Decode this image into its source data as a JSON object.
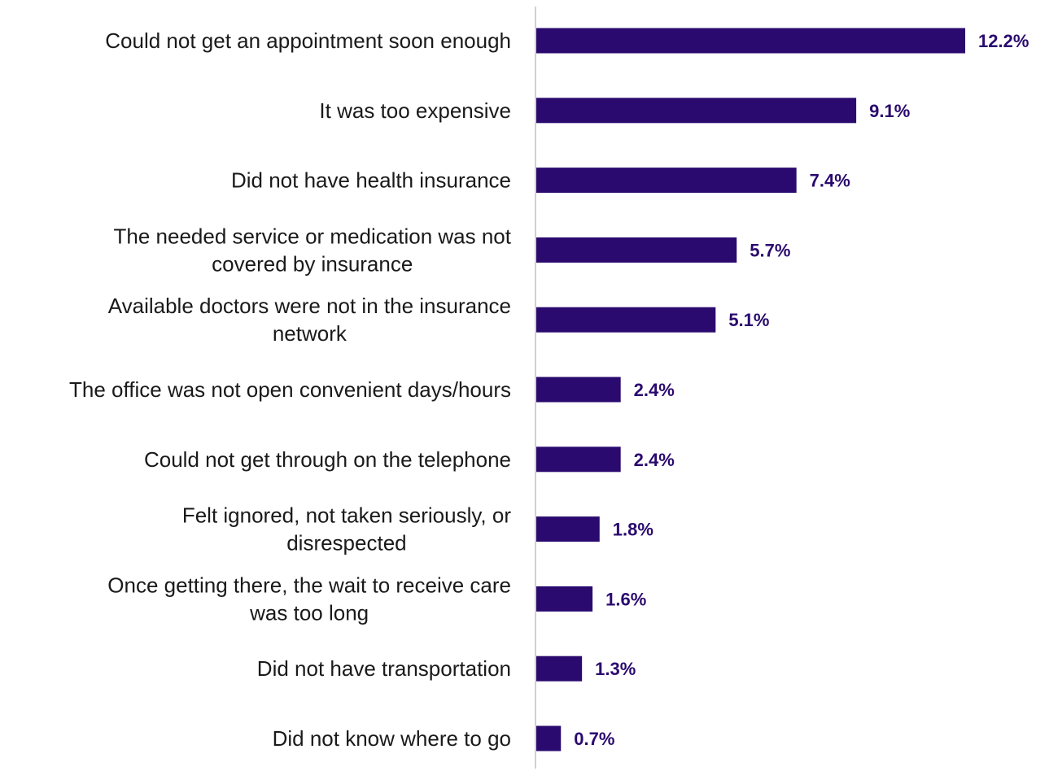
{
  "chart_data": {
    "type": "bar",
    "orientation": "horizontal",
    "categories": [
      "Could not get an appointment soon enough",
      "It was too expensive",
      "Did not have health insurance",
      "The needed service or medication was not covered by insurance",
      "Available doctors were not in the insurance network",
      "The office was not open convenient days/hours",
      "Could not get through on the telephone",
      "Felt ignored, not taken seriously, or disrespected",
      "Once getting there, the wait to receive care was too long",
      "Did not have transportation",
      "Did not know where to go"
    ],
    "category_lines": [
      [
        "Could not get an appointment soon enough"
      ],
      [
        "It was too expensive"
      ],
      [
        "Did not have health insurance"
      ],
      [
        "The needed service or medication was not",
        "covered by insurance"
      ],
      [
        "Available doctors were not in the insurance",
        "network"
      ],
      [
        "The office was not open convenient days/hours"
      ],
      [
        "Could not get through on the telephone"
      ],
      [
        "Felt ignored, not taken seriously, or",
        "disrespected"
      ],
      [
        "Once getting there, the wait to receive care",
        "was too long"
      ],
      [
        "Did not have transportation"
      ],
      [
        "Did not know where to go"
      ]
    ],
    "values": [
      12.2,
      9.1,
      7.4,
      5.7,
      5.1,
      2.4,
      2.4,
      1.8,
      1.6,
      1.3,
      0.7
    ],
    "value_labels": [
      "12.2%",
      "9.1%",
      "7.4%",
      "5.7%",
      "5.1%",
      "2.4%",
      "2.4%",
      "1.8%",
      "1.6%",
      "1.3%",
      "0.7%"
    ],
    "xlim": [
      0,
      12.2
    ],
    "grid": false,
    "colors": {
      "bar": "#2a0a6e",
      "value_label": "#2a0a6e",
      "axis": "#d0d0d0",
      "category_label": "#1a1a1a"
    }
  }
}
